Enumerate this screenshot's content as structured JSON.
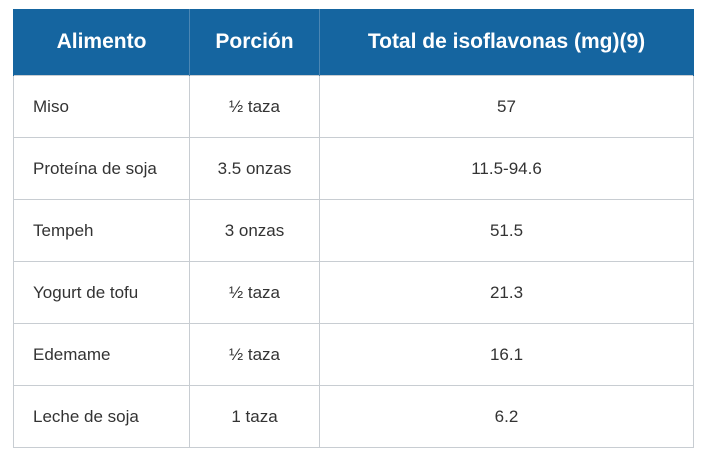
{
  "table": {
    "headers": [
      "Alimento",
      "Porción",
      "Total de isoflavonas (mg)(9)"
    ],
    "rows": [
      [
        "Miso",
        "½ taza",
        "57"
      ],
      [
        "Proteína de soja",
        "3.5 onzas",
        "11.5-94.6"
      ],
      [
        "Tempeh",
        "3 onzas",
        "51.5"
      ],
      [
        "Yogurt de tofu",
        "½ taza",
        "21.3"
      ],
      [
        "Edemame",
        "½ taza",
        "16.1"
      ],
      [
        "Leche de soja",
        "1 taza",
        "6.2"
      ]
    ],
    "colors": {
      "header_bg": "#1565a0",
      "header_text": "#ffffff",
      "cell_text": "#333333",
      "border": "#c8cdd2"
    }
  }
}
